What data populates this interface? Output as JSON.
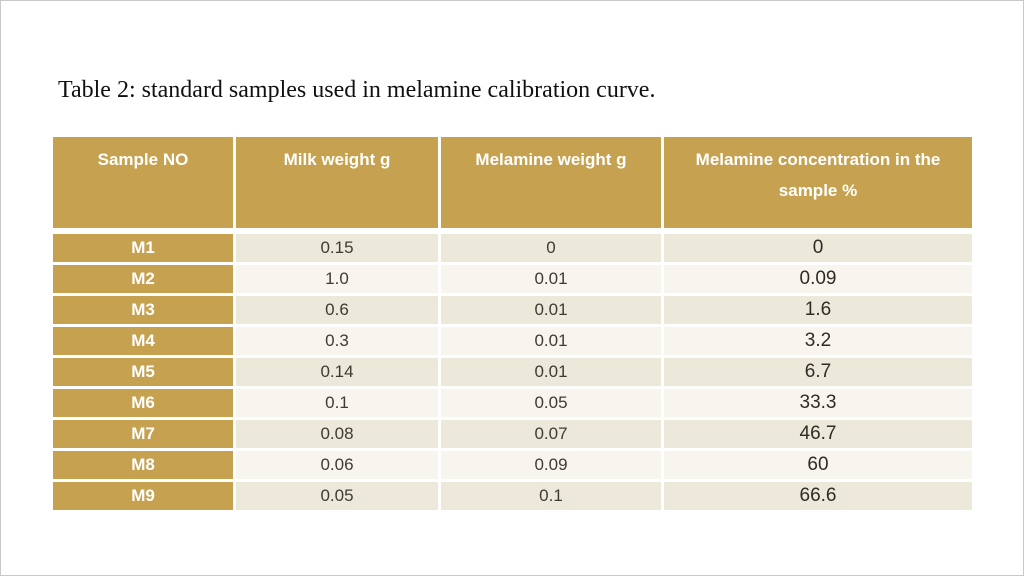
{
  "slide": {
    "title": "Table 2: standard samples used in melamine calibration curve."
  },
  "chart_data": {
    "type": "table",
    "title": "Table 2: standard samples used in melamine calibration curve.",
    "columns": [
      "Sample NO",
      "Milk weight g",
      "Melamine weight g",
      "Melamine concentration in the sample %"
    ],
    "rows": [
      [
        "M1",
        "0.15",
        "0",
        "0"
      ],
      [
        "M2",
        "1.0",
        "0.01",
        "0.09"
      ],
      [
        "M3",
        "0.6",
        "0.01",
        "1.6"
      ],
      [
        "M4",
        "0.3",
        "0.01",
        "3.2"
      ],
      [
        "M5",
        "0.14",
        "0.01",
        "6.7"
      ],
      [
        "M6",
        "0.1",
        "0.05",
        "33.3"
      ],
      [
        "M7",
        "0.08",
        "0.07",
        "46.7"
      ],
      [
        "M8",
        "0.06",
        "0.09",
        "60"
      ],
      [
        "M9",
        "0.05",
        "0.1",
        "66.6"
      ]
    ]
  },
  "colors": {
    "header_bg": "#c6a250",
    "row_label_bg": "#c6a250",
    "header_text": "#ffffff",
    "row_odd_bg": "#ece8da",
    "row_even_bg": "#f7f5ee",
    "body_text": "#3e3b32"
  }
}
